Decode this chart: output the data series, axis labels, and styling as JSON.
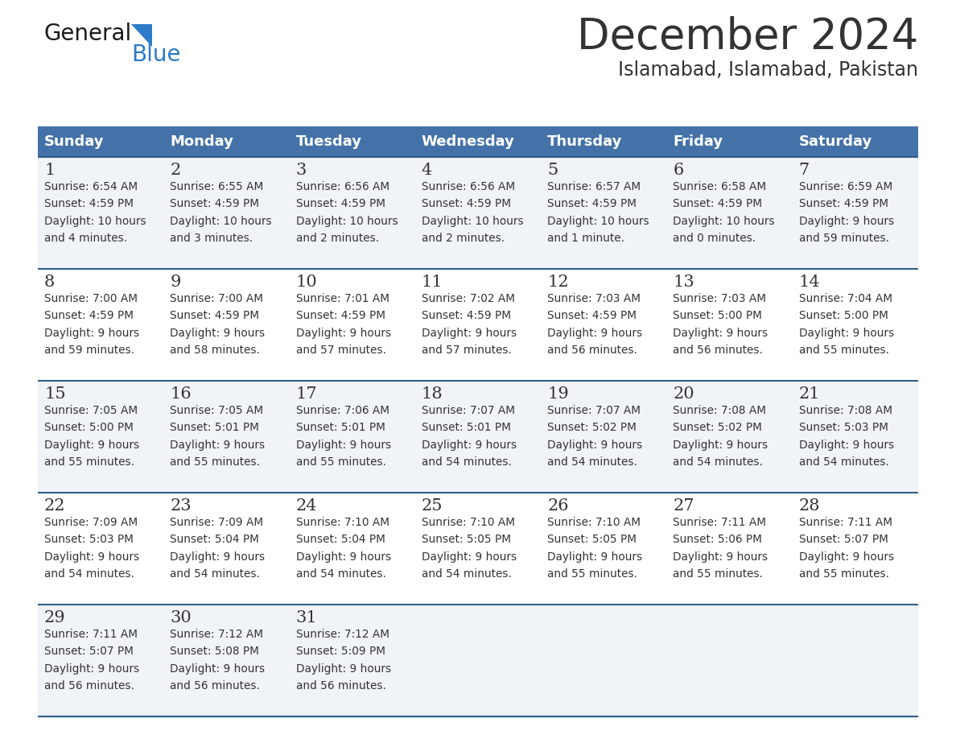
{
  "title": "December 2024",
  "subtitle": "Islamabad, Islamabad, Pakistan",
  "header_bg": "#4472a8",
  "header_text": "#ffffff",
  "row_bg_odd": "#f0f4f8",
  "row_bg_even": "#ffffff",
  "border_color": "#2e5f8a",
  "text_color": "#333333",
  "days_of_week": [
    "Sunday",
    "Monday",
    "Tuesday",
    "Wednesday",
    "Thursday",
    "Friday",
    "Saturday"
  ],
  "weeks": [
    [
      {
        "day": "1",
        "sunrise": "6:54 AM",
        "sunset": "4:59 PM",
        "daylight": "10 hours",
        "daylight2": "and 4 minutes."
      },
      {
        "day": "2",
        "sunrise": "6:55 AM",
        "sunset": "4:59 PM",
        "daylight": "10 hours",
        "daylight2": "and 3 minutes."
      },
      {
        "day": "3",
        "sunrise": "6:56 AM",
        "sunset": "4:59 PM",
        "daylight": "10 hours",
        "daylight2": "and 2 minutes."
      },
      {
        "day": "4",
        "sunrise": "6:56 AM",
        "sunset": "4:59 PM",
        "daylight": "10 hours",
        "daylight2": "and 2 minutes."
      },
      {
        "day": "5",
        "sunrise": "6:57 AM",
        "sunset": "4:59 PM",
        "daylight": "10 hours",
        "daylight2": "and 1 minute."
      },
      {
        "day": "6",
        "sunrise": "6:58 AM",
        "sunset": "4:59 PM",
        "daylight": "10 hours",
        "daylight2": "and 0 minutes."
      },
      {
        "day": "7",
        "sunrise": "6:59 AM",
        "sunset": "4:59 PM",
        "daylight": "9 hours",
        "daylight2": "and 59 minutes."
      }
    ],
    [
      {
        "day": "8",
        "sunrise": "7:00 AM",
        "sunset": "4:59 PM",
        "daylight": "9 hours",
        "daylight2": "and 59 minutes."
      },
      {
        "day": "9",
        "sunrise": "7:00 AM",
        "sunset": "4:59 PM",
        "daylight": "9 hours",
        "daylight2": "and 58 minutes."
      },
      {
        "day": "10",
        "sunrise": "7:01 AM",
        "sunset": "4:59 PM",
        "daylight": "9 hours",
        "daylight2": "and 57 minutes."
      },
      {
        "day": "11",
        "sunrise": "7:02 AM",
        "sunset": "4:59 PM",
        "daylight": "9 hours",
        "daylight2": "and 57 minutes."
      },
      {
        "day": "12",
        "sunrise": "7:03 AM",
        "sunset": "4:59 PM",
        "daylight": "9 hours",
        "daylight2": "and 56 minutes."
      },
      {
        "day": "13",
        "sunrise": "7:03 AM",
        "sunset": "5:00 PM",
        "daylight": "9 hours",
        "daylight2": "and 56 minutes."
      },
      {
        "day": "14",
        "sunrise": "7:04 AM",
        "sunset": "5:00 PM",
        "daylight": "9 hours",
        "daylight2": "and 55 minutes."
      }
    ],
    [
      {
        "day": "15",
        "sunrise": "7:05 AM",
        "sunset": "5:00 PM",
        "daylight": "9 hours",
        "daylight2": "and 55 minutes."
      },
      {
        "day": "16",
        "sunrise": "7:05 AM",
        "sunset": "5:01 PM",
        "daylight": "9 hours",
        "daylight2": "and 55 minutes."
      },
      {
        "day": "17",
        "sunrise": "7:06 AM",
        "sunset": "5:01 PM",
        "daylight": "9 hours",
        "daylight2": "and 55 minutes."
      },
      {
        "day": "18",
        "sunrise": "7:07 AM",
        "sunset": "5:01 PM",
        "daylight": "9 hours",
        "daylight2": "and 54 minutes."
      },
      {
        "day": "19",
        "sunrise": "7:07 AM",
        "sunset": "5:02 PM",
        "daylight": "9 hours",
        "daylight2": "and 54 minutes."
      },
      {
        "day": "20",
        "sunrise": "7:08 AM",
        "sunset": "5:02 PM",
        "daylight": "9 hours",
        "daylight2": "and 54 minutes."
      },
      {
        "day": "21",
        "sunrise": "7:08 AM",
        "sunset": "5:03 PM",
        "daylight": "9 hours",
        "daylight2": "and 54 minutes."
      }
    ],
    [
      {
        "day": "22",
        "sunrise": "7:09 AM",
        "sunset": "5:03 PM",
        "daylight": "9 hours",
        "daylight2": "and 54 minutes."
      },
      {
        "day": "23",
        "sunrise": "7:09 AM",
        "sunset": "5:04 PM",
        "daylight": "9 hours",
        "daylight2": "and 54 minutes."
      },
      {
        "day": "24",
        "sunrise": "7:10 AM",
        "sunset": "5:04 PM",
        "daylight": "9 hours",
        "daylight2": "and 54 minutes."
      },
      {
        "day": "25",
        "sunrise": "7:10 AM",
        "sunset": "5:05 PM",
        "daylight": "9 hours",
        "daylight2": "and 54 minutes."
      },
      {
        "day": "26",
        "sunrise": "7:10 AM",
        "sunset": "5:05 PM",
        "daylight": "9 hours",
        "daylight2": "and 55 minutes."
      },
      {
        "day": "27",
        "sunrise": "7:11 AM",
        "sunset": "5:06 PM",
        "daylight": "9 hours",
        "daylight2": "and 55 minutes."
      },
      {
        "day": "28",
        "sunrise": "7:11 AM",
        "sunset": "5:07 PM",
        "daylight": "9 hours",
        "daylight2": "and 55 minutes."
      }
    ],
    [
      {
        "day": "29",
        "sunrise": "7:11 AM",
        "sunset": "5:07 PM",
        "daylight": "9 hours",
        "daylight2": "and 56 minutes."
      },
      {
        "day": "30",
        "sunrise": "7:12 AM",
        "sunset": "5:08 PM",
        "daylight": "9 hours",
        "daylight2": "and 56 minutes."
      },
      {
        "day": "31",
        "sunrise": "7:12 AM",
        "sunset": "5:09 PM",
        "daylight": "9 hours",
        "daylight2": "and 56 minutes."
      },
      null,
      null,
      null,
      null
    ]
  ],
  "logo_general_color": "#1a1a1a",
  "logo_blue_color": "#2b7bc8",
  "logo_triangle_color": "#2b7bc8"
}
